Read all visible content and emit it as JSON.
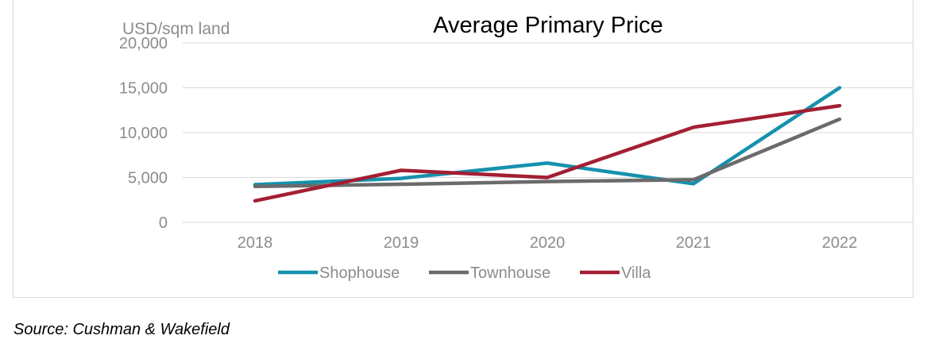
{
  "chart_data": {
    "type": "line",
    "title": "Average Primary Price",
    "ylabel": "USD/sqm land",
    "xlabel": "",
    "categories": [
      "2018",
      "2019",
      "2020",
      "2021",
      "2022"
    ],
    "ylim": [
      0,
      20000
    ],
    "yticks": [
      0,
      5000,
      10000,
      15000,
      20000
    ],
    "ytick_labels": [
      "0",
      "5,000",
      "10,000",
      "15,000",
      "20,000"
    ],
    "grid": true,
    "legend_position": "bottom",
    "series": [
      {
        "name": "Shophouse",
        "color": "#1591ad",
        "values": [
          4200,
          4900,
          6600,
          4300,
          15000
        ]
      },
      {
        "name": "Townhouse",
        "color": "#6b6b6b",
        "values": [
          4000,
          4250,
          4550,
          4750,
          11500
        ]
      },
      {
        "name": "Villa",
        "color": "#a31f34",
        "values": [
          2400,
          5800,
          5000,
          10600,
          13000
        ]
      }
    ]
  },
  "source": "Source: Cushman & Wakefield"
}
